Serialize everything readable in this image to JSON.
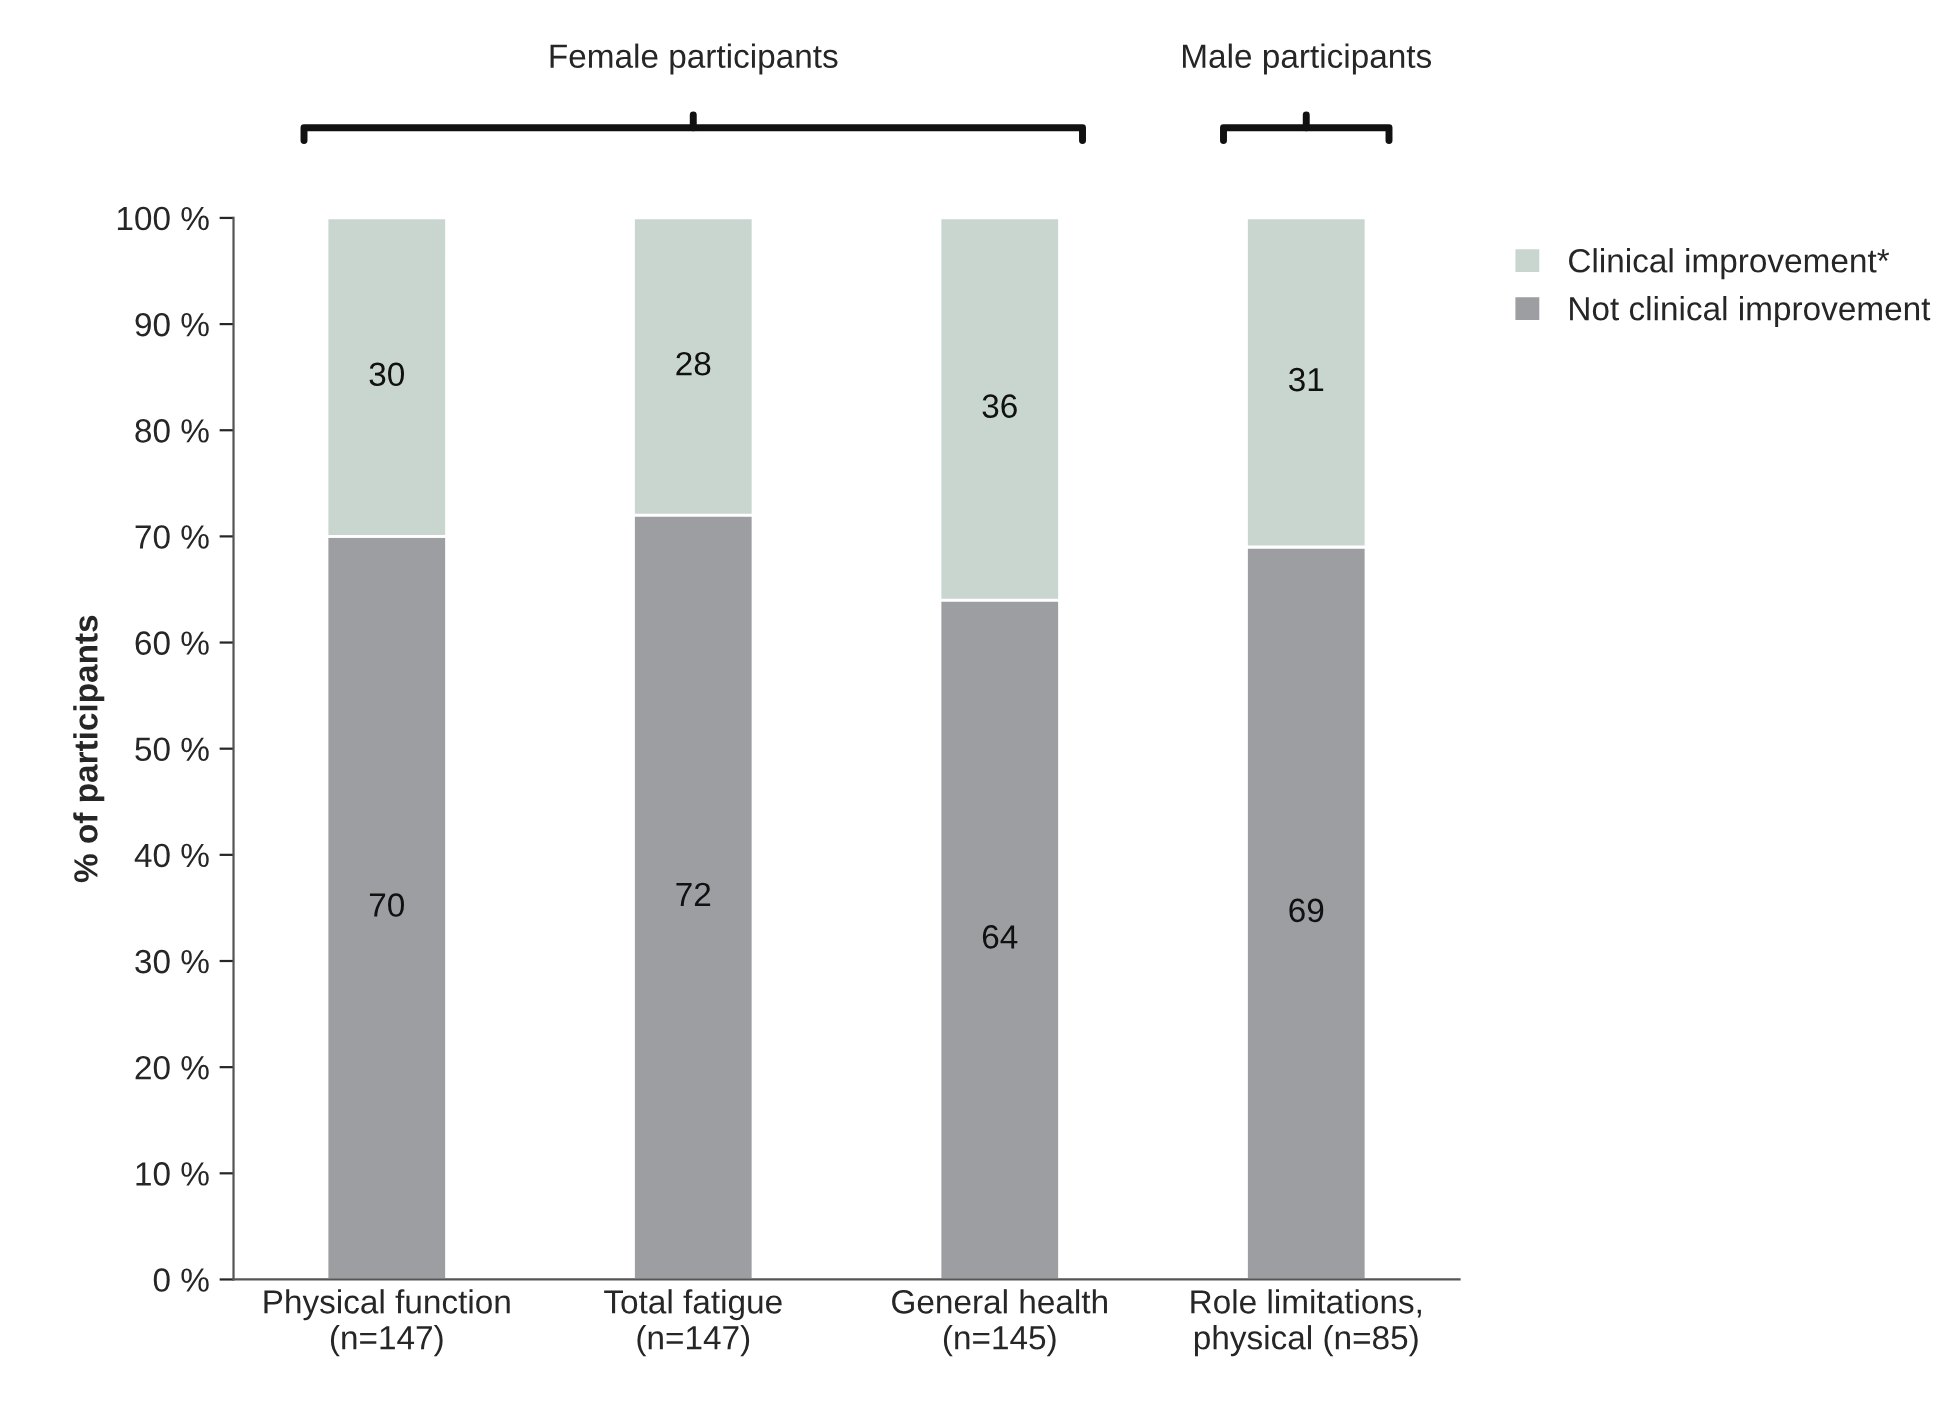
{
  "chart_data": {
    "type": "bar",
    "stacked": true,
    "ylabel": "% of participants",
    "categories": [
      "Physical function\n(n=147)",
      "Total fatigue\n(n=147)",
      "General health\n(n=145)",
      "Role limitations,\nphysical (n=85)"
    ],
    "series": [
      {
        "name": "Not clinical improvement",
        "color": "#9c9ea2",
        "values": [
          70,
          72,
          64,
          69
        ]
      },
      {
        "name": "Clinical improvement*",
        "color": "#c9d6d0",
        "values": [
          30,
          28,
          36,
          31
        ]
      }
    ],
    "ylim": [
      0,
      100
    ],
    "yticks": [
      {
        "value": 0,
        "label": "0 %"
      },
      {
        "value": 10,
        "label": "10 %"
      },
      {
        "value": 20,
        "label": "20 %"
      },
      {
        "value": 30,
        "label": "30 %"
      },
      {
        "value": 40,
        "label": "40 %"
      },
      {
        "value": 50,
        "label": "50 %"
      },
      {
        "value": 60,
        "label": "60 %"
      },
      {
        "value": 70,
        "label": "70 %"
      },
      {
        "value": 80,
        "label": "80 %"
      },
      {
        "value": 90,
        "label": "90 %"
      },
      {
        "value": 100,
        "label": "100 %"
      }
    ],
    "data_labels": true,
    "legend": "top right",
    "grid": false,
    "annotations": [
      "Female participants",
      "Male participants"
    ]
  }
}
